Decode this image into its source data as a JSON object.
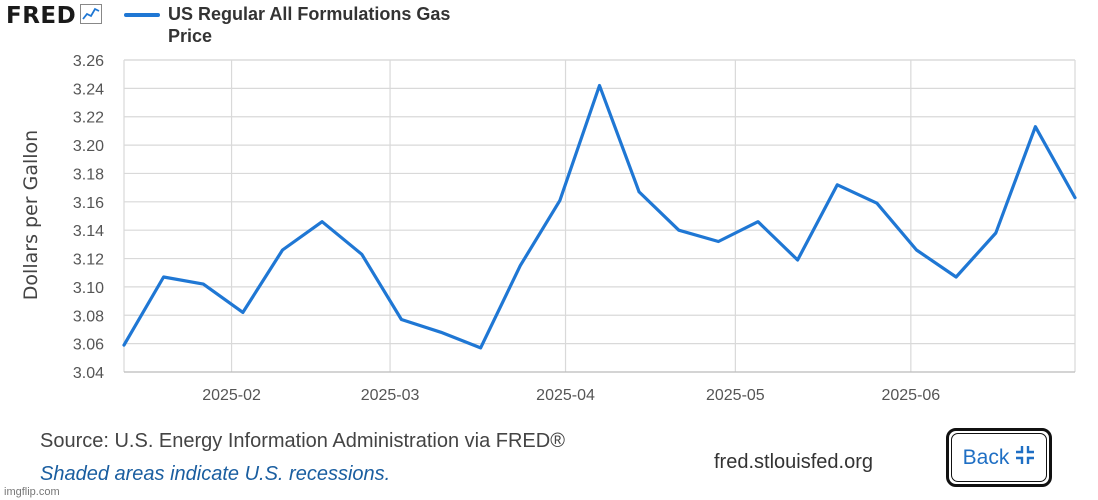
{
  "logo": {
    "text": "FRED",
    "icon": "line-chart-icon"
  },
  "source": "Source: U.S. Energy Information Administration via FRED®",
  "recession_note": "Shaded areas indicate U.S. recessions.",
  "site_url": "fred.stlouisfed.org",
  "back_button": {
    "label": "Back",
    "icon": "collapse-icon"
  },
  "credit": "imgflip.com",
  "colors": {
    "series": "#1f77d4",
    "grid": "#d9d9d9",
    "back_label": "#1f6fc4",
    "note": "#1a5ea0"
  },
  "chart_data": {
    "type": "line",
    "title": "",
    "ylabel": "Dollars per Gallon",
    "xlabel": "",
    "ylim": [
      3.04,
      3.26
    ],
    "yticks": [
      "3.04",
      "3.06",
      "3.08",
      "3.10",
      "3.12",
      "3.14",
      "3.16",
      "3.18",
      "3.20",
      "3.22",
      "3.24",
      "3.26"
    ],
    "xticks": [
      "2025-02",
      "2025-03",
      "2025-04",
      "2025-05",
      "2025-06"
    ],
    "xlim": [
      "2025-01-13",
      "2025-06-30"
    ],
    "grid": true,
    "legend": "top-left",
    "series": [
      {
        "name": "US Regular All Formulations Gas Price",
        "x": [
          "2025-01-13",
          "2025-01-20",
          "2025-01-27",
          "2025-02-03",
          "2025-02-10",
          "2025-02-17",
          "2025-02-24",
          "2025-03-03",
          "2025-03-10",
          "2025-03-17",
          "2025-03-24",
          "2025-03-31",
          "2025-04-07",
          "2025-04-14",
          "2025-04-21",
          "2025-04-28",
          "2025-05-05",
          "2025-05-12",
          "2025-05-19",
          "2025-05-26",
          "2025-06-02",
          "2025-06-09",
          "2025-06-16",
          "2025-06-23",
          "2025-06-30"
        ],
        "values": [
          3.059,
          3.107,
          3.102,
          3.082,
          3.126,
          3.146,
          3.123,
          3.077,
          3.068,
          3.057,
          3.115,
          3.161,
          3.242,
          3.167,
          3.14,
          3.132,
          3.146,
          3.119,
          3.172,
          3.159,
          3.126,
          3.107,
          3.138,
          3.213,
          3.163
        ]
      }
    ]
  }
}
